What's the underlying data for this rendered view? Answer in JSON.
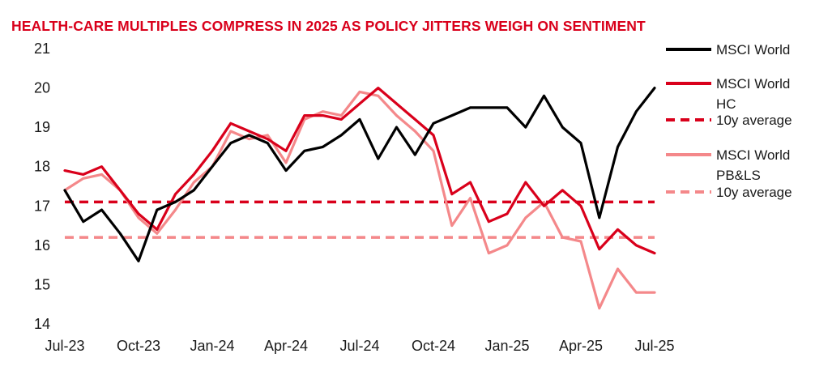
{
  "chart_data": {
    "type": "line",
    "title": "HEALTH-CARE MULTIPLES COMPRESS IN 2025 AS POLICY JITTERS WEIGH ON SENTIMENT",
    "xlabel": "",
    "ylabel": "",
    "ylim": [
      14,
      21
    ],
    "yticks": [
      14,
      15,
      16,
      17,
      18,
      19,
      20,
      21
    ],
    "xticks": [
      "Jul-23",
      "Oct-23",
      "Jan-24",
      "Apr-24",
      "Jul-24",
      "Oct-24",
      "Jan-25",
      "Apr-25",
      "Jul-25"
    ],
    "grid": false,
    "legend_position": "right",
    "colors": {
      "title": "#d9001b",
      "msci_world": "#000000",
      "msci_world_hc": "#d9001b",
      "msci_world_pbls": "#f4888a"
    },
    "x": [
      0,
      0.25,
      0.5,
      0.75,
      1,
      1.25,
      1.5,
      1.75,
      2,
      2.25,
      2.5,
      2.75,
      3,
      3.25,
      3.5,
      3.75,
      4,
      4.25,
      4.5,
      4.75,
      5,
      5.25,
      5.5,
      5.75,
      6,
      6.25,
      6.5,
      6.75,
      7,
      7.25,
      7.5,
      7.75,
      8
    ],
    "series": [
      {
        "name": "MSCI World",
        "style": "solid",
        "color": "#000000",
        "values": [
          17.4,
          16.6,
          16.9,
          16.3,
          15.6,
          16.9,
          17.1,
          17.4,
          18.0,
          18.6,
          18.8,
          18.6,
          17.9,
          18.4,
          18.5,
          18.8,
          19.2,
          18.2,
          19.0,
          18.3,
          19.1,
          19.3,
          19.5,
          19.5,
          19.5,
          19.0,
          19.8,
          19.0,
          18.6,
          16.7,
          18.5,
          19.4,
          20.0
        ]
      },
      {
        "name": "MSCI World HC",
        "style": "solid",
        "color": "#d9001b",
        "values": [
          17.9,
          17.8,
          18.0,
          17.4,
          16.8,
          16.4,
          17.3,
          17.8,
          18.4,
          19.1,
          18.9,
          18.7,
          18.4,
          19.3,
          19.3,
          19.2,
          19.6,
          20.0,
          19.6,
          19.2,
          18.8,
          17.3,
          17.6,
          16.6,
          16.8,
          17.6,
          17.0,
          17.4,
          17.0,
          15.9,
          16.4,
          16.0,
          15.8
        ]
      },
      {
        "name": "MSCI World HC 10y average",
        "style": "dashed",
        "color": "#d9001b",
        "values": [
          17.1,
          17.1,
          17.1,
          17.1,
          17.1,
          17.1,
          17.1,
          17.1,
          17.1,
          17.1,
          17.1,
          17.1,
          17.1,
          17.1,
          17.1,
          17.1,
          17.1,
          17.1,
          17.1,
          17.1,
          17.1,
          17.1,
          17.1,
          17.1,
          17.1,
          17.1,
          17.1,
          17.1,
          17.1,
          17.1,
          17.1,
          17.1,
          17.1
        ]
      },
      {
        "name": "MSCI World PB&LS",
        "style": "solid",
        "color": "#f4888a",
        "values": [
          17.4,
          17.7,
          17.8,
          17.4,
          16.7,
          16.3,
          16.9,
          17.6,
          18.0,
          18.9,
          18.7,
          18.8,
          18.1,
          19.2,
          19.4,
          19.3,
          19.9,
          19.8,
          19.3,
          18.9,
          18.4,
          16.5,
          17.2,
          15.8,
          16.0,
          16.7,
          17.1,
          16.2,
          16.1,
          14.4,
          15.4,
          14.8,
          14.8
        ]
      },
      {
        "name": "MSCI World PB&LS 10y average",
        "style": "dashed",
        "color": "#f4888a",
        "values": [
          16.2,
          16.2,
          16.2,
          16.2,
          16.2,
          16.2,
          16.2,
          16.2,
          16.2,
          16.2,
          16.2,
          16.2,
          16.2,
          16.2,
          16.2,
          16.2,
          16.2,
          16.2,
          16.2,
          16.2,
          16.2,
          16.2,
          16.2,
          16.2,
          16.2,
          16.2,
          16.2,
          16.2,
          16.2,
          16.2,
          16.2,
          16.2,
          16.2
        ]
      }
    ],
    "legend": [
      {
        "lines": [
          "MSCI World"
        ],
        "color": "#000000",
        "style": "solid"
      },
      {
        "lines": [
          "MSCI World",
          "HC"
        ],
        "color": "#d9001b",
        "style": "solid"
      },
      {
        "lines": [
          "10y average"
        ],
        "color": "#d9001b",
        "style": "dashed"
      },
      {
        "lines": [
          "MSCI World",
          "PB&LS"
        ],
        "color": "#f4888a",
        "style": "solid"
      },
      {
        "lines": [
          "10y average"
        ],
        "color": "#f4888a",
        "style": "dashed"
      }
    ]
  }
}
